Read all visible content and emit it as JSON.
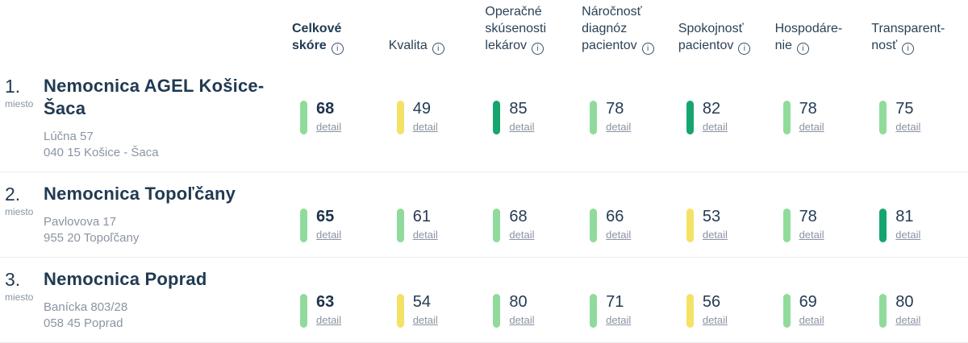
{
  "colors": {
    "light_green": "#90DB9B",
    "dark_green": "#17A56F",
    "yellow": "#F4E266",
    "heading_navy": "#203A52",
    "text_gray": "#8A94A3",
    "divider": "#ECECEC"
  },
  "header": {
    "info_icon": "i",
    "columns": [
      {
        "label": "Celkové\nskóre"
      },
      {
        "label": "Kvalita"
      },
      {
        "label": "Operačné\nskúsenosti\nlekárov"
      },
      {
        "label": "Náročnosť\ndiagnóz\npacientov"
      },
      {
        "label": "Spokojnosť\npacientov"
      },
      {
        "label": "Hospodáre-\nnie"
      },
      {
        "label": "Transparent-\nnosť"
      }
    ]
  },
  "rows": [
    {
      "rank": "1.",
      "rank_label": "miesto",
      "name": "Nemocnica AGEL Košice-Šaca",
      "address_line1": "Lúčna 57",
      "address_line2": "040 15 Košice - Šaca",
      "detail_label": "detail",
      "scores": [
        {
          "value": "68",
          "color": "light_green",
          "bold": true
        },
        {
          "value": "49",
          "color": "yellow"
        },
        {
          "value": "85",
          "color": "dark_green"
        },
        {
          "value": "78",
          "color": "light_green"
        },
        {
          "value": "82",
          "color": "dark_green"
        },
        {
          "value": "78",
          "color": "light_green"
        },
        {
          "value": "75",
          "color": "light_green"
        }
      ]
    },
    {
      "rank": "2.",
      "rank_label": "miesto",
      "name": "Nemocnica Topoľčany",
      "address_line1": "Pavlovova 17",
      "address_line2": "955 20 Topoľčany",
      "detail_label": "detail",
      "scores": [
        {
          "value": "65",
          "color": "light_green",
          "bold": true
        },
        {
          "value": "61",
          "color": "light_green"
        },
        {
          "value": "68",
          "color": "light_green"
        },
        {
          "value": "66",
          "color": "light_green"
        },
        {
          "value": "53",
          "color": "yellow"
        },
        {
          "value": "78",
          "color": "light_green"
        },
        {
          "value": "81",
          "color": "dark_green"
        }
      ]
    },
    {
      "rank": "3.",
      "rank_label": "miesto",
      "name": "Nemocnica Poprad",
      "address_line1": "Banícka 803/28",
      "address_line2": "058 45 Poprad",
      "detail_label": "detail",
      "scores": [
        {
          "value": "63",
          "color": "light_green",
          "bold": true
        },
        {
          "value": "54",
          "color": "yellow"
        },
        {
          "value": "80",
          "color": "light_green"
        },
        {
          "value": "71",
          "color": "light_green"
        },
        {
          "value": "56",
          "color": "yellow"
        },
        {
          "value": "69",
          "color": "light_green"
        },
        {
          "value": "80",
          "color": "light_green"
        }
      ]
    }
  ]
}
